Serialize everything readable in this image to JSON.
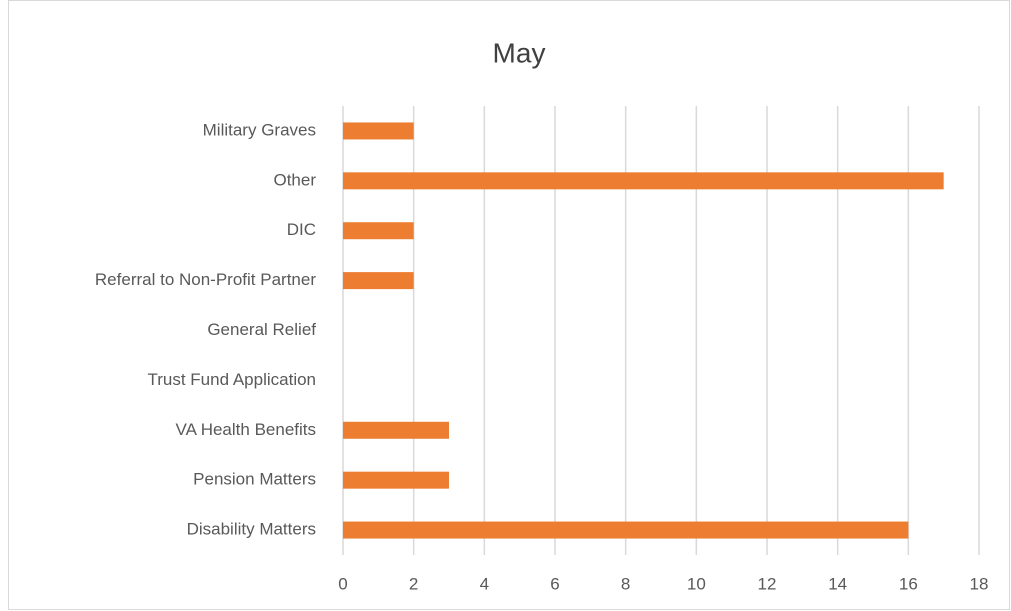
{
  "chart_data": {
    "type": "barh",
    "title": "May",
    "categories": [
      "Military Graves",
      "Other",
      "DIC",
      "Referral to Non-Profit Partner",
      "General Relief",
      "Trust Fund Application",
      "VA Health Benefits",
      "Pension Matters",
      "Disability Matters"
    ],
    "values": [
      2,
      17,
      2,
      2,
      0,
      0,
      3,
      3,
      16
    ],
    "color": "#ed7d31",
    "xlim": [
      0,
      18
    ],
    "xticks": [
      0,
      2,
      4,
      6,
      8,
      10,
      12,
      14,
      16,
      18
    ],
    "grid": true
  }
}
